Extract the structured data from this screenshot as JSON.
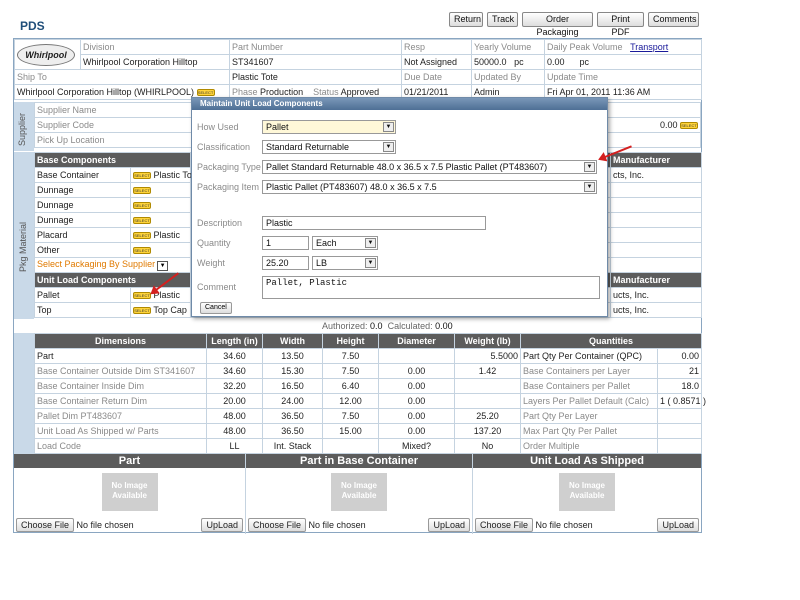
{
  "app_title": "PDS",
  "toolbar": {
    "return": "Return",
    "track": "Track",
    "order_packaging": "Order Packaging",
    "print_pdf": "Print PDF",
    "comments": "Comments"
  },
  "logo_text": "Whirlpool",
  "header": {
    "division_label": "Division",
    "division": "Whirlpool Corporation Hilltop",
    "part_number_label": "Part Number",
    "part_number": "ST341607",
    "resp_label": "Resp",
    "resp": "Not Assigned",
    "yearly_volume_label": "Yearly Volume",
    "yearly_volume": "50000.0",
    "yearly_unit": "pc",
    "daily_peak_label": "Daily Peak Volume",
    "daily_peak": "0.00",
    "daily_unit": "pc",
    "transport": "Transport",
    "ship_to_label": "Ship To",
    "part_desc": "Plastic Tote",
    "due_date_label": "Due Date",
    "updated_by_label": "Updated By",
    "update_time_label": "Update Time",
    "ship_to": "Whirlpool Corporation Hilltop (WHIRLPOOL)",
    "phase_label": "Phase",
    "phase": "Production",
    "status_label": "Status",
    "status": "Approved",
    "due_date": "01/21/2011",
    "updated_by": "Admin",
    "update_time": "Fri Apr 01, 2011 11:36 AM"
  },
  "supplier": {
    "side_label": "Supplier",
    "name_label": "Supplier Name",
    "code_label": "Supplier Code",
    "pickup_label": "Pick Up Location",
    "cost": "0.00"
  },
  "pkg": {
    "side_label": "Pkg Material",
    "base_header": "Base Components",
    "manufacturer_header": "Manufacturer",
    "base_rows": [
      {
        "label": "Base Container",
        "value": "Plastic To"
      },
      {
        "label": "Dunnage",
        "value": ""
      },
      {
        "label": "Dunnage",
        "value": ""
      },
      {
        "label": "Dunnage",
        "value": ""
      },
      {
        "label": "Placard",
        "value": "Plastic"
      },
      {
        "label": "Other",
        "value": ""
      }
    ],
    "base_mfr": "Products, Inc.",
    "base_mfr_visible": "cts, Inc.",
    "select_packaging": "Select Packaging By Supplier",
    "unit_header": "Unit Load Components",
    "unit_rows": [
      {
        "label": "Pallet",
        "value": "Plastic"
      },
      {
        "label": "Top",
        "value": "Top Cap"
      }
    ],
    "unit_mfr_1": "ucts, Inc.",
    "unit_mfr_2": "ucts, Inc.",
    "select_btn": "SELECT",
    "authorized_label": "Authorized:",
    "authorized": "0.0",
    "calculated_label": "Calculated:",
    "calculated": "0.00"
  },
  "dims": {
    "headers": [
      "Dimensions",
      "Length (in)",
      "Width",
      "Height",
      "Diameter",
      "Weight (lb)",
      "Quantities",
      ""
    ],
    "rows": [
      [
        "Part",
        "34.60",
        "13.50",
        "7.50",
        "",
        "5.5000",
        "Part Qty Per Container (QPC)",
        "0.00"
      ],
      [
        "Base Container Outside Dim ST341607",
        "34.60",
        "15.30",
        "7.50",
        "0.00",
        "1.42",
        "Base Containers per Layer",
        "21"
      ],
      [
        "Base Container Inside Dim",
        "32.20",
        "16.50",
        "6.40",
        "0.00",
        "",
        "Base Containers per Pallet",
        "18.0"
      ],
      [
        "Base Container Return Dim",
        "20.00",
        "24.00",
        "12.00",
        "0.00",
        "",
        "Layers Per Pallet Default (Calc)",
        "1 ( 0.8571 )"
      ],
      [
        "Pallet Dim PT483607",
        "48.00",
        "36.50",
        "7.50",
        "0.00",
        "25.20",
        "Part Qty Per Layer",
        ""
      ],
      [
        "Unit Load As Shipped w/ Parts",
        "48.00",
        "36.50",
        "15.00",
        "0.00",
        "137.20",
        "Max Part Qty Per Pallet",
        ""
      ],
      [
        "Load Code",
        "LL",
        "Int. Stack",
        "",
        "Mixed?",
        "No",
        "Order Multiple",
        ""
      ]
    ]
  },
  "images": {
    "sections": [
      "Part",
      "Part in Base Container",
      "Unit Load As Shipped"
    ],
    "no_image": "No Image Available",
    "choose_file": "Choose File",
    "no_file": "No file chosen",
    "upload": "UpLoad"
  },
  "dialog": {
    "title": "Maintain Unit Load Components",
    "how_used_label": "How Used",
    "how_used": "Pallet",
    "classification_label": "Classification",
    "classification": "Standard Returnable",
    "packaging_type_label": "Packaging Type",
    "packaging_type": "Pallet Standard Returnable 48.0 x 36.5 x 7.5 Plastic Pallet (PT483607)",
    "packaging_item_label": "Packaging Item",
    "packaging_item": "Plastic Pallet (PT483607) 48.0 x 36.5 x 7.5",
    "description_label": "Description",
    "description": "Plastic",
    "quantity_label": "Quantity",
    "quantity": "1",
    "quantity_unit": "Each",
    "weight_label": "Weight",
    "weight": "25.20",
    "weight_unit": "LB",
    "comment_label": "Comment",
    "comment": "Pallet, Plastic",
    "cancel": "Cancel"
  }
}
